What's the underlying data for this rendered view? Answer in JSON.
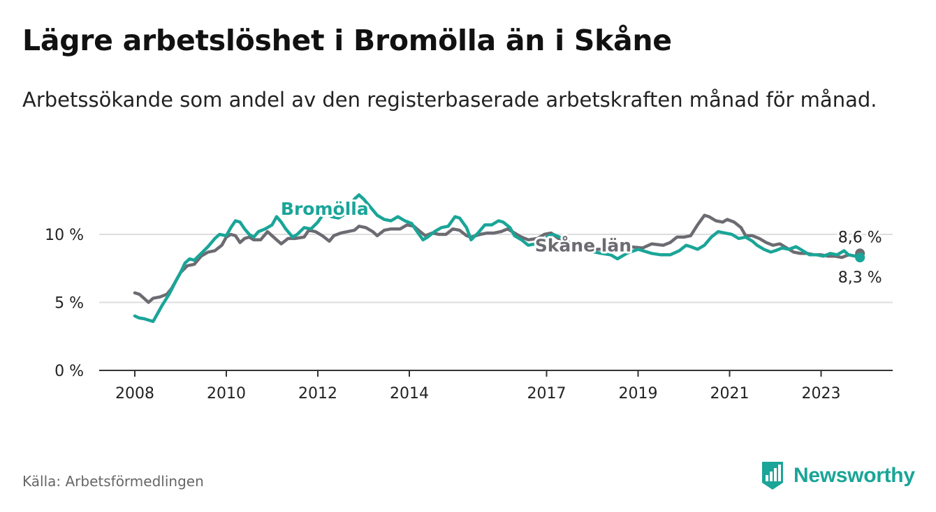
{
  "title": "Lägre arbetslöshet i Bromölla än i Skåne",
  "subtitle": "Arbetssökande som andel av den registerbaserade arbetskraften månad för månad.",
  "source": "Källa: Arbetsförmedlingen",
  "brand": "Newsworthy",
  "colors": {
    "bromolla": "#1aa598",
    "skane": "#6d6b72",
    "grid": "#dddddd",
    "axis": "#333333"
  },
  "chart_data": {
    "type": "line",
    "title": "Lägre arbetslöshet i Bromölla än i Skåne",
    "xlabel": "",
    "ylabel": "",
    "xlim": [
      2008.0,
      2024.5
    ],
    "ylim": [
      0,
      12
    ],
    "y_ticks": [
      {
        "value": 0,
        "label": "0 %"
      },
      {
        "value": 5,
        "label": "5 %"
      },
      {
        "value": 10,
        "label": "10 %"
      }
    ],
    "x_ticks": [
      {
        "value": 2008,
        "label": "2008"
      },
      {
        "value": 2010,
        "label": "2010"
      },
      {
        "value": 2012,
        "label": "2012"
      },
      {
        "value": 2014,
        "label": "2014"
      },
      {
        "value": 2017,
        "label": "2017"
      },
      {
        "value": 2019,
        "label": "2019"
      },
      {
        "value": 2021,
        "label": "2021"
      },
      {
        "value": 2023,
        "label": "2023"
      }
    ],
    "grid": true,
    "series": [
      {
        "name": "Skåne län",
        "label_at": [
          2017.8,
          9.2
        ],
        "points": [
          [
            2008.0,
            5.7
          ],
          [
            2008.1,
            5.6
          ],
          [
            2008.2,
            5.3
          ],
          [
            2008.3,
            5.0
          ],
          [
            2008.4,
            5.3
          ],
          [
            2008.55,
            5.4
          ],
          [
            2008.7,
            5.6
          ],
          [
            2008.8,
            6.0
          ],
          [
            2008.9,
            6.6
          ],
          [
            2009.0,
            7.2
          ],
          [
            2009.15,
            7.7
          ],
          [
            2009.3,
            7.8
          ],
          [
            2009.45,
            8.4
          ],
          [
            2009.6,
            8.7
          ],
          [
            2009.75,
            8.8
          ],
          [
            2009.9,
            9.2
          ],
          [
            2010.0,
            9.8
          ],
          [
            2010.1,
            10.0
          ],
          [
            2010.2,
            9.9
          ],
          [
            2010.3,
            9.4
          ],
          [
            2010.4,
            9.7
          ],
          [
            2010.5,
            9.8
          ],
          [
            2010.6,
            9.6
          ],
          [
            2010.75,
            9.6
          ],
          [
            2010.9,
            10.2
          ],
          [
            2011.0,
            9.9
          ],
          [
            2011.1,
            9.6
          ],
          [
            2011.2,
            9.3
          ],
          [
            2011.35,
            9.7
          ],
          [
            2011.5,
            9.7
          ],
          [
            2011.7,
            9.8
          ],
          [
            2011.8,
            10.3
          ],
          [
            2011.95,
            10.2
          ],
          [
            2012.1,
            9.9
          ],
          [
            2012.25,
            9.5
          ],
          [
            2012.35,
            9.9
          ],
          [
            2012.5,
            10.1
          ],
          [
            2012.65,
            10.2
          ],
          [
            2012.8,
            10.3
          ],
          [
            2012.9,
            10.6
          ],
          [
            2013.05,
            10.5
          ],
          [
            2013.2,
            10.2
          ],
          [
            2013.3,
            9.9
          ],
          [
            2013.45,
            10.3
          ],
          [
            2013.6,
            10.4
          ],
          [
            2013.8,
            10.4
          ],
          [
            2013.95,
            10.7
          ],
          [
            2014.1,
            10.6
          ],
          [
            2014.2,
            10.3
          ],
          [
            2014.35,
            9.9
          ],
          [
            2014.5,
            10.1
          ],
          [
            2014.65,
            10.0
          ],
          [
            2014.8,
            10.0
          ],
          [
            2014.95,
            10.4
          ],
          [
            2015.1,
            10.3
          ],
          [
            2015.25,
            9.9
          ],
          [
            2015.35,
            9.8
          ],
          [
            2015.55,
            10.0
          ],
          [
            2015.7,
            10.1
          ],
          [
            2015.85,
            10.1
          ],
          [
            2016.0,
            10.2
          ],
          [
            2016.15,
            10.4
          ],
          [
            2016.3,
            10.1
          ],
          [
            2016.45,
            9.8
          ],
          [
            2016.6,
            9.6
          ],
          [
            2016.8,
            9.7
          ],
          [
            2016.95,
            10.0
          ],
          [
            2017.1,
            10.1
          ],
          [
            2017.3,
            9.6
          ],
          [
            2017.6,
            9.0
          ],
          [
            2017.9,
            8.9
          ],
          [
            2018.2,
            8.9
          ],
          [
            2018.5,
            8.9
          ],
          [
            2018.8,
            9.1
          ],
          [
            2019.1,
            9.0
          ],
          [
            2019.3,
            9.3
          ],
          [
            2019.55,
            9.2
          ],
          [
            2019.7,
            9.4
          ],
          [
            2019.85,
            9.8
          ],
          [
            2020.0,
            9.8
          ],
          [
            2020.15,
            9.9
          ],
          [
            2020.3,
            10.7
          ],
          [
            2020.45,
            11.4
          ],
          [
            2020.55,
            11.3
          ],
          [
            2020.7,
            11.0
          ],
          [
            2020.85,
            10.9
          ],
          [
            2020.95,
            11.1
          ],
          [
            2021.1,
            10.9
          ],
          [
            2021.25,
            10.5
          ],
          [
            2021.35,
            9.9
          ],
          [
            2021.5,
            9.9
          ],
          [
            2021.65,
            9.7
          ],
          [
            2021.8,
            9.4
          ],
          [
            2021.95,
            9.2
          ],
          [
            2022.1,
            9.3
          ],
          [
            2022.25,
            9.0
          ],
          [
            2022.4,
            8.7
          ],
          [
            2022.55,
            8.6
          ],
          [
            2022.7,
            8.6
          ],
          [
            2022.85,
            8.5
          ],
          [
            2023.0,
            8.5
          ],
          [
            2023.15,
            8.4
          ],
          [
            2023.3,
            8.4
          ],
          [
            2023.45,
            8.3
          ],
          [
            2023.6,
            8.5
          ],
          [
            2023.75,
            8.4
          ],
          [
            2023.85,
            8.6
          ]
        ],
        "end_label": "8,6 %"
      },
      {
        "name": "Bromölla",
        "label_at": [
          2012.15,
          11.9
        ],
        "points": [
          [
            2008.0,
            4.0
          ],
          [
            2008.1,
            3.85
          ],
          [
            2008.2,
            3.8
          ],
          [
            2008.3,
            3.7
          ],
          [
            2008.4,
            3.6
          ],
          [
            2008.5,
            4.2
          ],
          [
            2008.6,
            4.8
          ],
          [
            2008.75,
            5.6
          ],
          [
            2008.9,
            6.6
          ],
          [
            2009.0,
            7.2
          ],
          [
            2009.1,
            7.9
          ],
          [
            2009.2,
            8.2
          ],
          [
            2009.3,
            8.1
          ],
          [
            2009.45,
            8.6
          ],
          [
            2009.6,
            9.1
          ],
          [
            2009.75,
            9.7
          ],
          [
            2009.85,
            10.0
          ],
          [
            2010.0,
            9.9
          ],
          [
            2010.1,
            10.5
          ],
          [
            2010.2,
            11.0
          ],
          [
            2010.3,
            10.9
          ],
          [
            2010.4,
            10.4
          ],
          [
            2010.5,
            10.0
          ],
          [
            2010.6,
            9.8
          ],
          [
            2010.7,
            10.2
          ],
          [
            2010.85,
            10.4
          ],
          [
            2011.0,
            10.7
          ],
          [
            2011.1,
            11.3
          ],
          [
            2011.2,
            10.9
          ],
          [
            2011.3,
            10.4
          ],
          [
            2011.45,
            9.8
          ],
          [
            2011.55,
            10.0
          ],
          [
            2011.7,
            10.5
          ],
          [
            2011.85,
            10.4
          ],
          [
            2012.0,
            10.9
          ],
          [
            2012.1,
            11.4
          ],
          [
            2012.2,
            11.6
          ],
          [
            2012.3,
            11.3
          ],
          [
            2012.45,
            11.2
          ],
          [
            2012.55,
            11.4
          ],
          [
            2012.7,
            12.0
          ],
          [
            2012.8,
            12.6
          ],
          [
            2012.9,
            12.9
          ],
          [
            2013.0,
            12.6
          ],
          [
            2013.15,
            12.0
          ],
          [
            2013.3,
            11.4
          ],
          [
            2013.45,
            11.1
          ],
          [
            2013.6,
            11.0
          ],
          [
            2013.75,
            11.3
          ],
          [
            2013.9,
            11.0
          ],
          [
            2014.05,
            10.8
          ],
          [
            2014.15,
            10.3
          ],
          [
            2014.3,
            9.6
          ],
          [
            2014.4,
            9.8
          ],
          [
            2014.55,
            10.2
          ],
          [
            2014.7,
            10.5
          ],
          [
            2014.85,
            10.6
          ],
          [
            2015.0,
            11.3
          ],
          [
            2015.1,
            11.2
          ],
          [
            2015.25,
            10.5
          ],
          [
            2015.35,
            9.6
          ],
          [
            2015.5,
            10.1
          ],
          [
            2015.65,
            10.7
          ],
          [
            2015.8,
            10.7
          ],
          [
            2015.95,
            11.0
          ],
          [
            2016.05,
            10.9
          ],
          [
            2016.2,
            10.5
          ],
          [
            2016.3,
            9.9
          ],
          [
            2016.45,
            9.6
          ],
          [
            2016.6,
            9.2
          ],
          [
            2016.75,
            9.3
          ],
          [
            2016.9,
            9.5
          ],
          [
            2017.05,
            9.9
          ],
          [
            2017.15,
            10.0
          ],
          [
            2017.35,
            9.7
          ],
          [
            2017.6,
            9.2
          ],
          [
            2017.9,
            8.8
          ],
          [
            2018.2,
            8.6
          ],
          [
            2018.4,
            8.5
          ],
          [
            2018.55,
            8.2
          ],
          [
            2018.75,
            8.6
          ],
          [
            2019.0,
            8.9
          ],
          [
            2019.3,
            8.6
          ],
          [
            2019.5,
            8.5
          ],
          [
            2019.7,
            8.5
          ],
          [
            2019.9,
            8.8
          ],
          [
            2020.05,
            9.2
          ],
          [
            2020.15,
            9.1
          ],
          [
            2020.3,
            8.9
          ],
          [
            2020.45,
            9.2
          ],
          [
            2020.6,
            9.8
          ],
          [
            2020.75,
            10.2
          ],
          [
            2020.9,
            10.1
          ],
          [
            2021.05,
            10.0
          ],
          [
            2021.2,
            9.7
          ],
          [
            2021.35,
            9.8
          ],
          [
            2021.5,
            9.5
          ],
          [
            2021.6,
            9.2
          ],
          [
            2021.75,
            8.9
          ],
          [
            2021.9,
            8.7
          ],
          [
            2022.0,
            8.8
          ],
          [
            2022.15,
            9.0
          ],
          [
            2022.3,
            8.9
          ],
          [
            2022.45,
            9.1
          ],
          [
            2022.6,
            8.8
          ],
          [
            2022.75,
            8.5
          ],
          [
            2022.9,
            8.5
          ],
          [
            2023.05,
            8.4
          ],
          [
            2023.2,
            8.6
          ],
          [
            2023.35,
            8.5
          ],
          [
            2023.5,
            8.8
          ],
          [
            2023.6,
            8.5
          ],
          [
            2023.75,
            8.4
          ],
          [
            2023.85,
            8.3
          ]
        ],
        "end_label": "8,3 %"
      }
    ]
  }
}
